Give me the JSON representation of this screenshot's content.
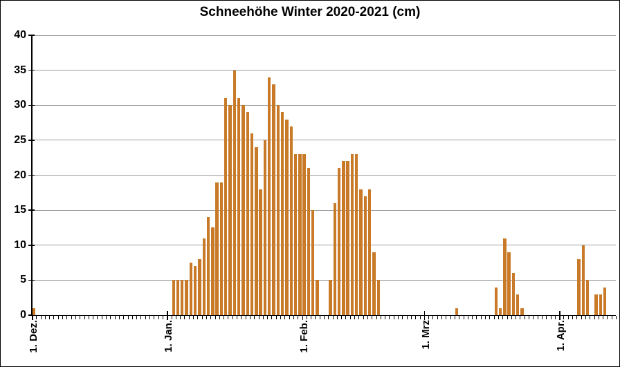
{
  "title": "Schneehöhe Winter 2020-2021 (cm)",
  "colors": {
    "bar": "#C87A28",
    "gridline": "#9C9C9C",
    "axis": "#000000",
    "background": "#FFFFFF",
    "text": "#000000"
  },
  "chart_data": {
    "type": "bar",
    "title": "Schneehöhe Winter 2020-2021 (cm)",
    "xlabel": "",
    "ylabel": "",
    "ylim": [
      0,
      40
    ],
    "y_ticks": [
      0,
      5,
      10,
      15,
      20,
      25,
      30,
      35,
      40
    ],
    "grid": "horizontal-major",
    "legend": "none",
    "x_axis": {
      "start_date": "2020-12-01",
      "total_days": 134,
      "month_ticks": [
        {
          "label": "1. Dez.",
          "day": 0
        },
        {
          "label": "1. Jan.",
          "day": 31
        },
        {
          "label": "1. Feb.",
          "day": 62
        },
        {
          "label": "1. Mrz",
          "day": 90
        },
        {
          "label": "1. Apr.",
          "day": 121
        }
      ]
    },
    "series": [
      {
        "name": "Schneehöhe (cm)",
        "points": [
          {
            "date": "2020-12-01",
            "day": 0,
            "value": 1
          },
          {
            "date": "2021-01-02",
            "day": 32,
            "value": 5
          },
          {
            "date": "2021-01-03",
            "day": 33,
            "value": 5
          },
          {
            "date": "2021-01-04",
            "day": 34,
            "value": 5
          },
          {
            "date": "2021-01-05",
            "day": 35,
            "value": 5
          },
          {
            "date": "2021-01-06",
            "day": 36,
            "value": 7.5
          },
          {
            "date": "2021-01-07",
            "day": 37,
            "value": 7
          },
          {
            "date": "2021-01-08",
            "day": 38,
            "value": 8
          },
          {
            "date": "2021-01-09",
            "day": 39,
            "value": 11
          },
          {
            "date": "2021-01-10",
            "day": 40,
            "value": 14
          },
          {
            "date": "2021-01-11",
            "day": 41,
            "value": 12.5
          },
          {
            "date": "2021-01-12",
            "day": 42,
            "value": 19
          },
          {
            "date": "2021-01-13",
            "day": 43,
            "value": 19
          },
          {
            "date": "2021-01-14",
            "day": 44,
            "value": 31
          },
          {
            "date": "2021-01-15",
            "day": 45,
            "value": 30
          },
          {
            "date": "2021-01-16",
            "day": 46,
            "value": 35
          },
          {
            "date": "2021-01-17",
            "day": 47,
            "value": 31
          },
          {
            "date": "2021-01-18",
            "day": 48,
            "value": 30
          },
          {
            "date": "2021-01-19",
            "day": 49,
            "value": 29
          },
          {
            "date": "2021-01-20",
            "day": 50,
            "value": 26
          },
          {
            "date": "2021-01-21",
            "day": 51,
            "value": 24
          },
          {
            "date": "2021-01-22",
            "day": 52,
            "value": 18
          },
          {
            "date": "2021-01-23",
            "day": 53,
            "value": 25
          },
          {
            "date": "2021-01-24",
            "day": 54,
            "value": 34
          },
          {
            "date": "2021-01-25",
            "day": 55,
            "value": 33
          },
          {
            "date": "2021-01-26",
            "day": 56,
            "value": 30
          },
          {
            "date": "2021-01-27",
            "day": 57,
            "value": 29
          },
          {
            "date": "2021-01-28",
            "day": 58,
            "value": 28
          },
          {
            "date": "2021-01-29",
            "day": 59,
            "value": 27
          },
          {
            "date": "2021-01-30",
            "day": 60,
            "value": 23
          },
          {
            "date": "2021-01-31",
            "day": 61,
            "value": 23
          },
          {
            "date": "2021-02-01",
            "day": 62,
            "value": 23
          },
          {
            "date": "2021-02-02",
            "day": 63,
            "value": 21
          },
          {
            "date": "2021-02-03",
            "day": 64,
            "value": 15
          },
          {
            "date": "2021-02-04",
            "day": 65,
            "value": 5
          },
          {
            "date": "2021-02-07",
            "day": 68,
            "value": 5
          },
          {
            "date": "2021-02-08",
            "day": 69,
            "value": 16
          },
          {
            "date": "2021-02-09",
            "day": 70,
            "value": 21
          },
          {
            "date": "2021-02-10",
            "day": 71,
            "value": 22
          },
          {
            "date": "2021-02-11",
            "day": 72,
            "value": 22
          },
          {
            "date": "2021-02-12",
            "day": 73,
            "value": 23
          },
          {
            "date": "2021-02-13",
            "day": 74,
            "value": 23
          },
          {
            "date": "2021-02-14",
            "day": 75,
            "value": 18
          },
          {
            "date": "2021-02-15",
            "day": 76,
            "value": 17
          },
          {
            "date": "2021-02-16",
            "day": 77,
            "value": 18
          },
          {
            "date": "2021-02-17",
            "day": 78,
            "value": 9
          },
          {
            "date": "2021-02-18",
            "day": 79,
            "value": 5
          },
          {
            "date": "2021-03-08",
            "day": 97,
            "value": 1
          },
          {
            "date": "2021-03-17",
            "day": 106,
            "value": 4
          },
          {
            "date": "2021-03-18",
            "day": 107,
            "value": 1
          },
          {
            "date": "2021-03-19",
            "day": 108,
            "value": 11
          },
          {
            "date": "2021-03-20",
            "day": 109,
            "value": 9
          },
          {
            "date": "2021-03-21",
            "day": 110,
            "value": 6
          },
          {
            "date": "2021-03-22",
            "day": 111,
            "value": 3
          },
          {
            "date": "2021-03-23",
            "day": 112,
            "value": 1
          },
          {
            "date": "2021-04-05",
            "day": 125,
            "value": 8
          },
          {
            "date": "2021-04-06",
            "day": 126,
            "value": 10
          },
          {
            "date": "2021-04-07",
            "day": 127,
            "value": 5
          },
          {
            "date": "2021-04-09",
            "day": 129,
            "value": 3
          },
          {
            "date": "2021-04-10",
            "day": 130,
            "value": 3
          },
          {
            "date": "2021-04-11",
            "day": 131,
            "value": 4
          }
        ]
      }
    ]
  }
}
